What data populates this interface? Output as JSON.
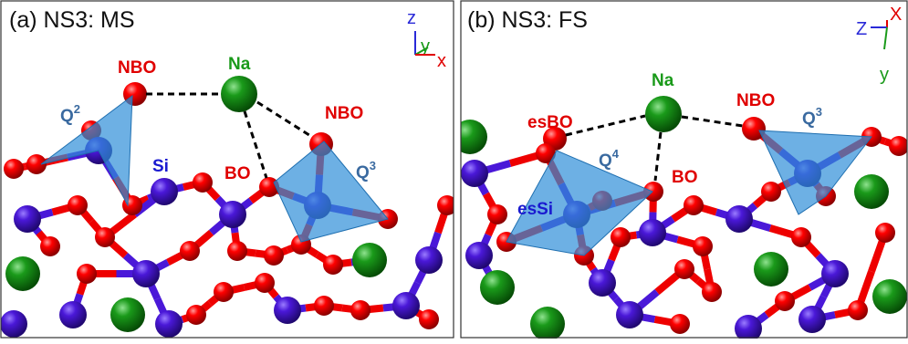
{
  "panels": [
    {
      "title": "(a) NS3: MS",
      "labels": [
        {
          "text": "NBO"
        },
        {
          "text": "Na"
        },
        {
          "text": "NBO"
        },
        {
          "text": "Q",
          "sup": "2"
        },
        {
          "text": "Si"
        },
        {
          "text": "BO"
        },
        {
          "text": "Q",
          "sup": "3"
        }
      ],
      "axes": {
        "z": "z",
        "y": "y",
        "x": "x"
      }
    },
    {
      "title": "(b) NS3: FS",
      "labels": [
        {
          "text": "Na"
        },
        {
          "text": "NBO"
        },
        {
          "text": "Q",
          "sup": "3"
        },
        {
          "text": "esBO"
        },
        {
          "text": "Q",
          "sup": "4"
        },
        {
          "text": "BO"
        },
        {
          "text": "esSi"
        }
      ],
      "axes": {
        "x": "X",
        "z": "Z",
        "y": "y"
      }
    }
  ]
}
